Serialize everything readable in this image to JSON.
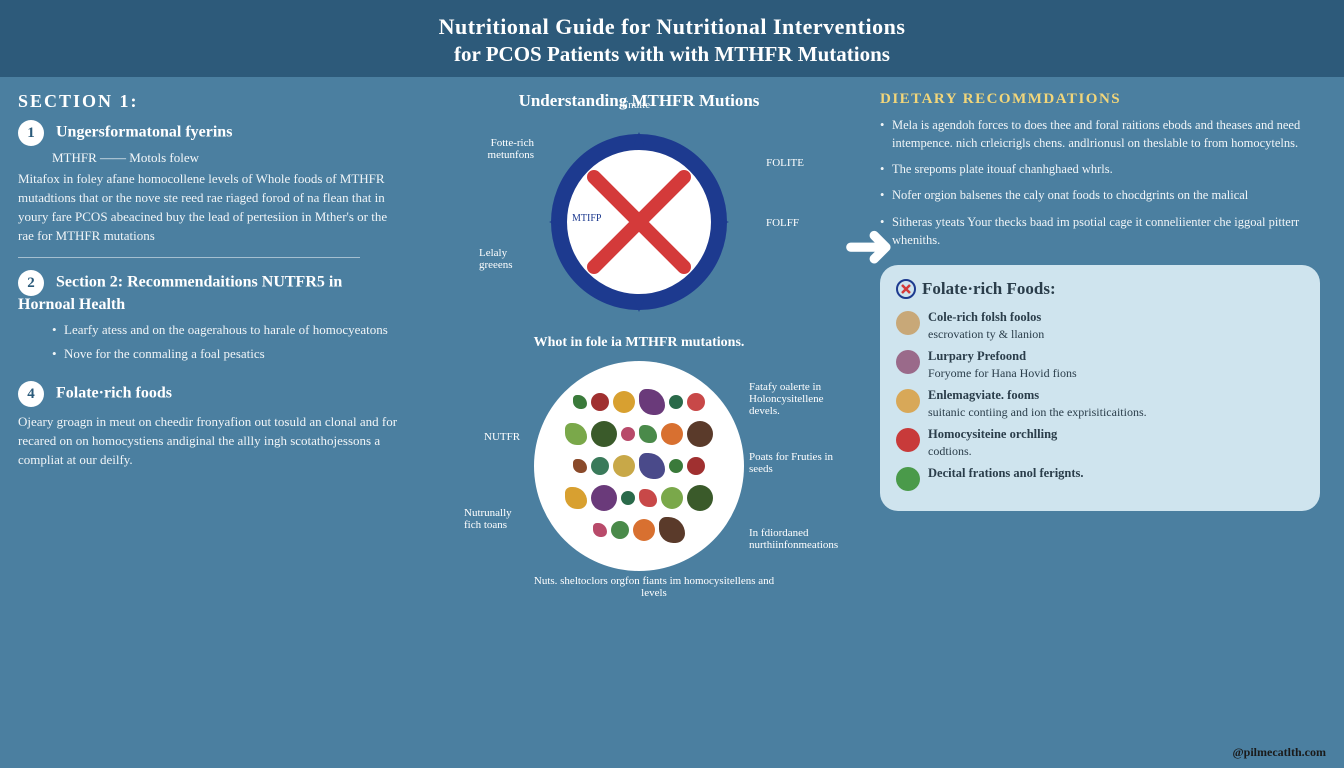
{
  "header": {
    "line1": "Nutritional Guide for Nutritional Interventions",
    "line2": "for PCOS Patients with with MTHFR Mutations"
  },
  "left": {
    "section1_label": "SECTION 1:",
    "s1_num": "1",
    "s1_title": "Ungersformatonal fyerins",
    "s1_sub": "MTHFR —— Motols folew",
    "s1_body": "Mitafox in foley afane homocollene levels of\nWhole foods of MTHFR mutadtions that or the nove ste reed rae riaged forod of na flean that in youry fare PCOS abeacined buy the lead of pertesiion in Mther's or the rae for MTHFR mutations",
    "s2_num": "2",
    "s2_title": "Section 2: Recommendaitions NUTFR5 in Hornoal Health",
    "s2_items": [
      "Learfy atess and on the oagerahous to harale of homocyeatons",
      "Nove for the conmaling a foal pesatics"
    ],
    "s4_num": "4",
    "s4_title": "Folate·rich foods",
    "s4_body": "Ojeary groagn in meut on cheedir fronyafion out tosuld an clonal and for recared on on homocystiens andiginal the allly ingh scotathojessons a compliat at our deilfy."
  },
  "middle": {
    "title1": "Understanding MTHFR Mutions",
    "ring_labels": {
      "top": "Fnulte",
      "topleft": "Fotte-rich\nmetunfons",
      "left": "Lelaly greeens",
      "right1": "FOLITE",
      "right2": "FOLFF",
      "inner": "MTIFP"
    },
    "ring_colors": {
      "ring": "#1d3a8f",
      "x": "#d43a3a",
      "bg": "#ffffff"
    },
    "title2": "Whot in fole ia MTHFR mutations.",
    "food_labels": {
      "left": "NUTFR",
      "leftlow": "Nutrunally fich toans",
      "bottom": "Nuts. sheltoclors orgfon fiants im homocysitellens and levels",
      "r1": "Fatafy oalerte in Holoncysitellene devels.",
      "r2": "Poats for Fruties in seeds",
      "r3": "In fdiordaned nurthiinfonmeations"
    },
    "food_colors": [
      "#3a7a3a",
      "#a03030",
      "#d8a030",
      "#6a3a7a",
      "#2a6a4a",
      "#c84848",
      "#7aa84a",
      "#3a5a2a",
      "#b84a6a",
      "#4a8a4a",
      "#d87030",
      "#5a3a2a",
      "#8a4a2a",
      "#3a7a5a",
      "#c8a848",
      "#4a4a8a"
    ]
  },
  "right": {
    "title": "DIETARY RECOMMDATIONS",
    "items": [
      "Mela is agendoh forces to does thee and foral raitions ebods and theases and need intempence. nich crleicrigls chens. andlrionusl on theslable to from homocytelns.",
      "The srepoms plate itouaf chanhghaed whrls.",
      "Nofer orgion balsenes the caly onat foods to chocdgrints on the malical",
      "Sitheras yteats\nYour thecks baad im psotial cage it conneliienter che iggoal pitterr wheniths."
    ],
    "box": {
      "title": "Folate·rich Foods:",
      "rows": [
        {
          "color": "#c8a878",
          "t1": "Cole-rich folsh foolos",
          "t2": "escrovation ty & llanion"
        },
        {
          "color": "#9a6a8a",
          "t1": "Lurpary Prefoond",
          "t2": "Foryome for Hana Hovid fions"
        },
        {
          "color": "#d8a858",
          "t1": "Enlemagviate. fooms",
          "t2": "suitanic contiing and ion the exprisiticaitions."
        },
        {
          "color": "#c83a3a",
          "t1": "Homocysiteine orchlling",
          "t2": "codtions."
        },
        {
          "color": "#4a9a4a",
          "t1": "Decital frations anol ferignts.",
          "t2": ""
        }
      ]
    }
  },
  "credit": "@pilmecatlth.com"
}
